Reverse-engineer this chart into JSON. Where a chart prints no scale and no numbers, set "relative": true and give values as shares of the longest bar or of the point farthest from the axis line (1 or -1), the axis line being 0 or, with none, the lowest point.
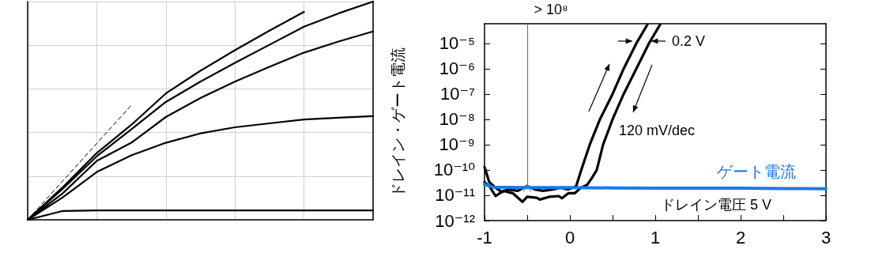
{
  "chart_data": [
    {
      "type": "line",
      "relative": true,
      "categories": [
        null,
        null,
        null,
        null,
        null,
        null,
        null,
        null,
        null,
        null,
        null
      ],
      "grid": true,
      "marker": "none",
      "line_style": "solid",
      "series": [
        {
          "color": "#000000",
          "values": [
            0,
            0.147,
            0.306,
            0.435,
            0.579,
            0.683,
            0.777,
            0.867,
            0.953,
            null,
            null
          ]
        },
        {
          "color": "#000000",
          "values": [
            0,
            0.14,
            0.291,
            0.414,
            0.54,
            0.633,
            0.719,
            0.802,
            0.885,
            0.946,
            1
          ]
        },
        {
          "color": "#000000",
          "values": [
            0,
            0.119,
            0.27,
            0.353,
            0.471,
            0.558,
            0.633,
            0.701,
            0.766,
            0.817,
            0.863
          ]
        },
        {
          "color": "#000000",
          "values": [
            0,
            0.101,
            0.219,
            0.295,
            0.353,
            0.396,
            0.424,
            0.442,
            0.46,
            0.468,
            0.475
          ]
        },
        {
          "color": "#000000",
          "values": [
            0,
            0.04,
            0.043,
            0.043,
            0.043,
            0.043,
            0.043,
            0.043,
            0.043,
            0.043,
            0.043
          ]
        },
        {
          "color": "#000000",
          "line_style": "dashed",
          "values": [
            0,
            0.175,
            0.35,
            0.525,
            null,
            null,
            null,
            null,
            null,
            null,
            null
          ]
        }
      ]
    },
    {
      "type": "line",
      "ylabel": "ドレイン・ゲート電流",
      "log": "y",
      "xlim": [
        -1,
        3
      ],
      "ylim": [
        1e-12,
        6e-05
      ],
      "marker": "none",
      "line_style": "solid",
      "xticks": [
        -1,
        {
          "value": -0.5,
          "label": null
        },
        0,
        {
          "value": 0.5,
          "label": null
        },
        1,
        {
          "value": 1.5,
          "label": null
        },
        2,
        {
          "value": 2.5,
          "label": null
        },
        3
      ],
      "yticks": [
        {
          "value": 1e-12,
          "label": "10⁻¹²"
        },
        {
          "value": 1e-11,
          "label": "10⁻¹¹"
        },
        {
          "value": 1e-10,
          "label": "10⁻¹⁰"
        },
        {
          "value": 1e-09,
          "label": "10⁻⁹"
        },
        {
          "value": 1e-08,
          "label": "10⁻⁸"
        },
        {
          "value": 1e-07,
          "label": "10⁻⁷"
        },
        {
          "value": 1e-06,
          "label": "10⁻⁶"
        },
        {
          "value": 1e-05,
          "label": "10⁻⁵"
        }
      ],
      "ref_lines": [
        {
          "axis": "x",
          "value": -0.5,
          "label": "> 10⁸",
          "color": "#777777"
        }
      ],
      "annotations": [
        "0.2 V",
        {
          "text": "120 mV/dec",
          "x": 0.5,
          "y": 1e-08
        },
        "ドレイン電圧 5 V"
      ],
      "series": [
        {
          "color": "#000000",
          "x": [
            -1.0,
            -0.944,
            -0.87,
            -0.796,
            -0.722,
            -0.611,
            -0.5,
            -0.407,
            -0.315,
            -0.204,
            -0.111,
            -0.019,
            0.074,
            0.13,
            0.233,
            0.352,
            0.5,
            0.63,
            0.778,
            0.907
          ],
          "values": [
            1.3e-10,
            3.3e-11,
            2e-11,
            1.35e-11,
            1.7e-11,
            1.5e-11,
            2.3e-11,
            1.7e-11,
            1.5e-11,
            1.7e-11,
            2e-11,
            1.7e-11,
            2.3e-11,
            9.3e-11,
            1e-09,
            1e-08,
            1e-07,
            1e-06,
            1e-05,
            5.5e-05
          ]
        },
        {
          "color": "#000000",
          "x": [
            -1.0,
            -0.944,
            -0.87,
            -0.778,
            -0.667,
            -0.556,
            -0.5,
            -0.389,
            -0.352,
            -0.241,
            -0.13,
            -0.093,
            -0.019,
            0.056,
            0.13,
            0.204,
            0.259,
            0.315,
            0.389,
            0.5,
            0.63,
            0.778,
            0.926,
            1.056
          ],
          "values": [
            3.3e-11,
            2.3e-11,
            9.3e-12,
            1.5e-11,
            1.2e-11,
            5.5e-12,
            8.7e-12,
            8e-12,
            6.8e-12,
            8.7e-12,
            9.3e-12,
            7.6e-12,
            1.2e-11,
            1.2e-11,
            2e-11,
            2.6e-11,
            4.9e-11,
            1e-10,
            1e-09,
            1e-08,
            1e-07,
            1e-06,
            1e-05,
            5.5e-05
          ]
        },
        {
          "name": "ゲート電流",
          "color": "#1a7ae8",
          "x": [
            -1,
            -0.9,
            -0.5,
            0,
            0.5,
            1,
            1.5,
            2,
            2.5,
            3
          ],
          "values": [
            2.7e-11,
            2.1e-11,
            2e-11,
            2e-11,
            1.95e-11,
            1.9e-11,
            1.9e-11,
            1.9e-11,
            1.85e-11,
            1.8e-11
          ]
        }
      ]
    }
  ]
}
